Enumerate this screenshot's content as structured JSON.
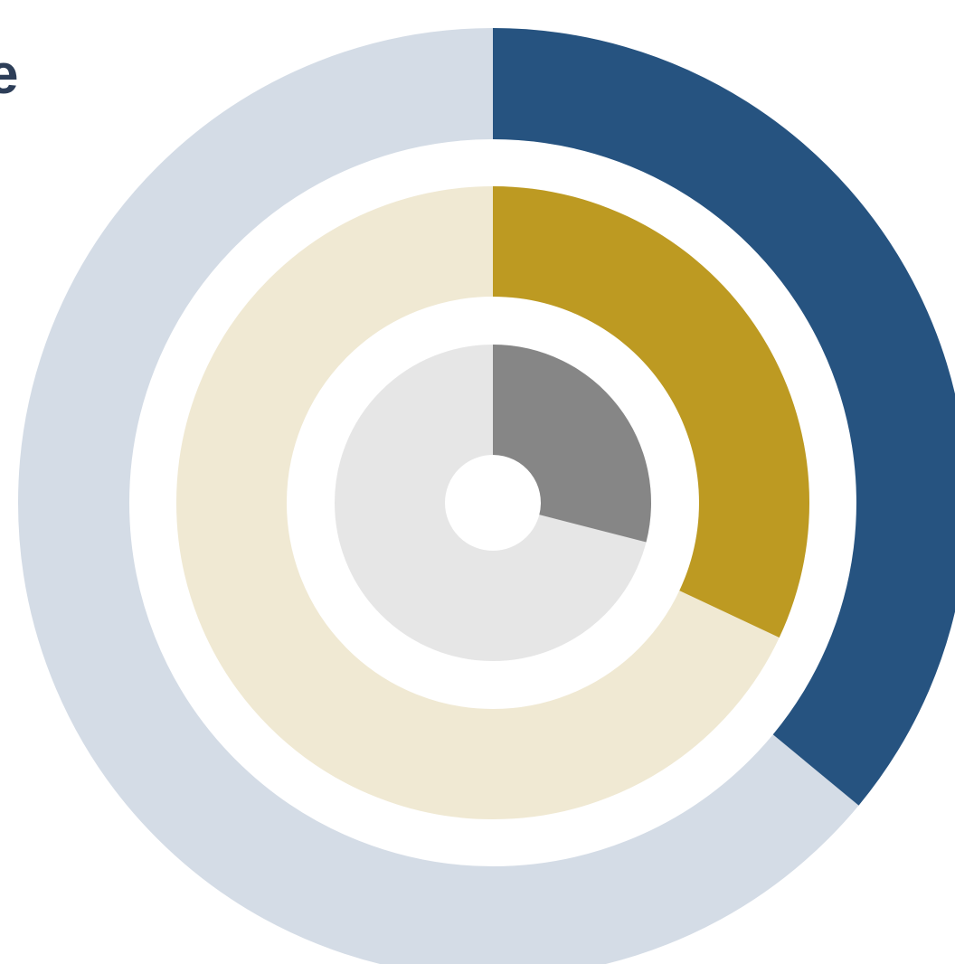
{
  "chart_data": {
    "type": "radial-progress",
    "title": "",
    "legend": "none",
    "grid": false,
    "rings": [
      {
        "name": "",
        "value": 0.36,
        "color": "#265380",
        "track_color": "#d4dce6"
      },
      {
        "name": "",
        "value": 0.32,
        "color": "#bd9a22",
        "track_color": "#f0e9d3"
      },
      {
        "name": "",
        "value": 0.29,
        "color": "#868686",
        "track_color": "#e6e6e6"
      }
    ]
  },
  "edge_fragment": {
    "text": "e",
    "color": "#2d3e58"
  }
}
